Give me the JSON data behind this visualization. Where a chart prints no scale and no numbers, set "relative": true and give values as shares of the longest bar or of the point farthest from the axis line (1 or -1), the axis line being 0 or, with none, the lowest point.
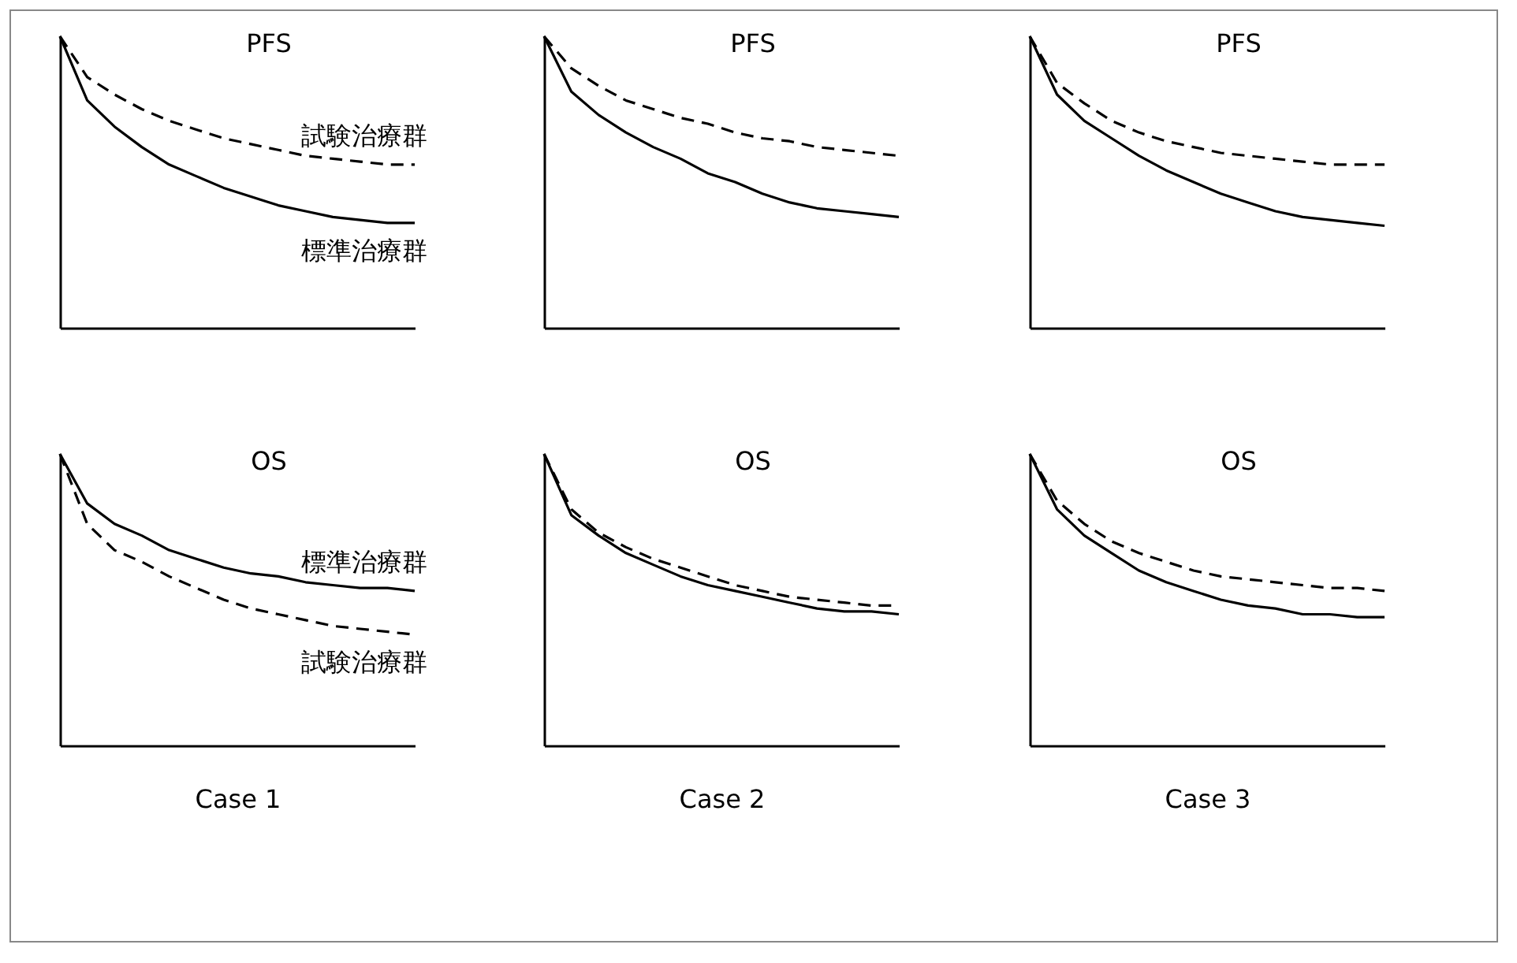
{
  "chart_data": [
    {
      "type": "line",
      "title": "PFS",
      "relative": true,
      "categories": [
        null,
        null,
        null,
        null,
        null,
        null,
        null,
        null,
        null,
        null,
        null,
        null,
        null,
        null
      ],
      "series": [
        {
          "name": "試験治療群",
          "color": "#000000",
          "line_style": "dashed",
          "values": [
            1,
            0.86,
            0.8,
            0.75,
            0.71,
            0.68,
            0.65,
            0.63,
            0.61,
            0.59,
            0.58,
            0.57,
            0.56,
            0.56
          ]
        },
        {
          "name": "標準治療群",
          "color": "#000000",
          "line_style": "solid",
          "values": [
            1,
            0.78,
            0.69,
            0.62,
            0.56,
            0.52,
            0.48,
            0.45,
            0.42,
            0.4,
            0.38,
            0.37,
            0.36,
            0.36
          ]
        }
      ]
    },
    {
      "type": "line",
      "title": "PFS",
      "relative": true,
      "categories": [
        null,
        null,
        null,
        null,
        null,
        null,
        null,
        null,
        null,
        null,
        null,
        null,
        null,
        null
      ],
      "series": [
        {
          "color": "#000000",
          "line_style": "dashed",
          "values": [
            1,
            0.89,
            0.83,
            0.78,
            0.75,
            0.72,
            0.7,
            0.67,
            0.65,
            0.64,
            0.62,
            0.61,
            0.6,
            0.59
          ]
        },
        {
          "color": "#000000",
          "line_style": "solid",
          "values": [
            1,
            0.81,
            0.73,
            0.67,
            0.62,
            0.58,
            0.53,
            0.5,
            0.46,
            0.43,
            0.41,
            0.4,
            0.39,
            0.38
          ]
        }
      ]
    },
    {
      "type": "line",
      "title": "PFS",
      "relative": true,
      "categories": [
        null,
        null,
        null,
        null,
        null,
        null,
        null,
        null,
        null,
        null,
        null,
        null,
        null,
        null
      ],
      "series": [
        {
          "color": "#000000",
          "line_style": "dashed",
          "values": [
            1,
            0.84,
            0.77,
            0.71,
            0.67,
            0.64,
            0.62,
            0.6,
            0.59,
            0.58,
            0.57,
            0.56,
            0.56,
            0.56
          ]
        },
        {
          "color": "#000000",
          "line_style": "solid",
          "values": [
            1,
            0.8,
            0.71,
            0.65,
            0.59,
            0.54,
            0.5,
            0.46,
            0.43,
            0.4,
            0.38,
            0.37,
            0.36,
            0.35
          ]
        }
      ]
    },
    {
      "type": "line",
      "title": "OS",
      "xlabel": "Case 1",
      "relative": true,
      "categories": [
        null,
        null,
        null,
        null,
        null,
        null,
        null,
        null,
        null,
        null,
        null,
        null,
        null,
        null
      ],
      "series": [
        {
          "name": "標準治療群",
          "color": "#000000",
          "line_style": "solid",
          "values": [
            1,
            0.83,
            0.76,
            0.72,
            0.67,
            0.64,
            0.61,
            0.59,
            0.58,
            0.56,
            0.55,
            0.54,
            0.54,
            0.53
          ]
        },
        {
          "name": "試験治療群",
          "color": "#000000",
          "line_style": "dashed",
          "values": [
            1,
            0.76,
            0.67,
            0.63,
            0.58,
            0.54,
            0.5,
            0.47,
            0.45,
            0.43,
            0.41,
            0.4,
            0.39,
            0.38
          ]
        }
      ]
    },
    {
      "type": "line",
      "title": "OS",
      "xlabel": "Case 2",
      "relative": true,
      "categories": [
        null,
        null,
        null,
        null,
        null,
        null,
        null,
        null,
        null,
        null,
        null,
        null,
        null,
        null
      ],
      "series": [
        {
          "color": "#000000",
          "line_style": "dashed",
          "values": [
            1,
            0.81,
            0.73,
            0.68,
            0.64,
            0.61,
            0.58,
            0.55,
            0.53,
            0.51,
            0.5,
            0.49,
            0.48,
            0.48
          ]
        },
        {
          "color": "#000000",
          "line_style": "solid",
          "values": [
            1,
            0.79,
            0.72,
            0.66,
            0.62,
            0.58,
            0.55,
            0.53,
            0.51,
            0.49,
            0.47,
            0.46,
            0.46,
            0.45
          ]
        }
      ]
    },
    {
      "type": "line",
      "title": "OS",
      "xlabel": "Case 3",
      "relative": true,
      "categories": [
        null,
        null,
        null,
        null,
        null,
        null,
        null,
        null,
        null,
        null,
        null,
        null,
        null,
        null
      ],
      "series": [
        {
          "color": "#000000",
          "line_style": "dashed",
          "values": [
            1,
            0.84,
            0.76,
            0.7,
            0.66,
            0.63,
            0.6,
            0.58,
            0.57,
            0.56,
            0.55,
            0.54,
            0.54,
            0.53
          ]
        },
        {
          "color": "#000000",
          "line_style": "solid",
          "values": [
            1,
            0.81,
            0.72,
            0.66,
            0.6,
            0.56,
            0.53,
            0.5,
            0.48,
            0.47,
            0.45,
            0.45,
            0.44,
            0.44
          ]
        }
      ]
    }
  ]
}
